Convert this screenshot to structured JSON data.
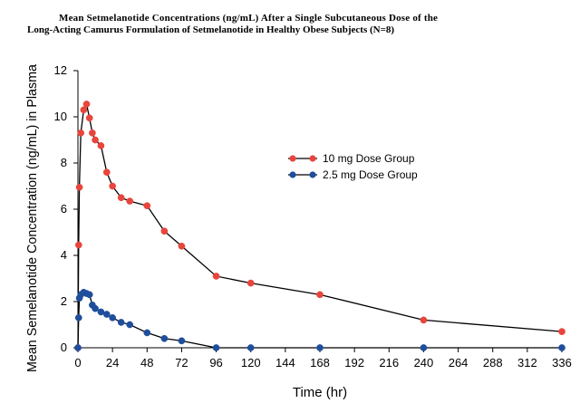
{
  "title": {
    "line1": "Mean Setmelanotide Concentrations (ng/mL) After a Single Subcutaneous Dose of the",
    "line2": "Long-Acting Camurus Formulation of Setmelanotide in Healthy Obese Subjects (N=8)"
  },
  "chart_data": {
    "type": "line",
    "title": "Mean Setmelanotide Concentrations (ng/mL) After a Single Subcutaneous Dose of the Long-Acting Camurus Formulation of Setmelanotide in Healthy Obese Subjects (N=8)",
    "xlabel": "Time (hr)",
    "ylabel": "Mean Semelanotide Concentration (ng/mL) in Plasma",
    "xlim": [
      0,
      336
    ],
    "ylim": [
      0,
      12
    ],
    "xticks": [
      0,
      24,
      48,
      72,
      96,
      120,
      144,
      168,
      192,
      216,
      240,
      264,
      288,
      312,
      336
    ],
    "yticks": [
      0,
      2,
      4,
      6,
      8,
      10,
      12
    ],
    "grid": false,
    "legend_position": "center-right",
    "series": [
      {
        "name": "10 mg Dose Group",
        "color": "#e8453c",
        "x": [
          0,
          0.5,
          1,
          2,
          4,
          6,
          8,
          10,
          12,
          16,
          20,
          24,
          30,
          36,
          48,
          60,
          72,
          96,
          120,
          168,
          240,
          336
        ],
        "y": [
          0,
          4.45,
          6.95,
          9.3,
          10.3,
          10.55,
          9.95,
          9.3,
          9.0,
          8.75,
          7.6,
          7.0,
          6.5,
          6.35,
          6.15,
          5.05,
          4.4,
          3.1,
          2.8,
          2.3,
          1.2,
          0.7
        ]
      },
      {
        "name": "2.5 mg Dose Group",
        "color": "#1f4e9c",
        "x": [
          0,
          0.5,
          1,
          2,
          4,
          6,
          8,
          10,
          12,
          16,
          20,
          24,
          30,
          36,
          48,
          60,
          72,
          96,
          120,
          168,
          240,
          336
        ],
        "y": [
          0,
          1.3,
          2.15,
          2.3,
          2.4,
          2.35,
          2.3,
          1.85,
          1.7,
          1.55,
          1.45,
          1.3,
          1.1,
          1.0,
          0.65,
          0.4,
          0.3,
          0.0,
          0.0,
          0.0,
          0.0,
          0.0
        ]
      }
    ]
  }
}
